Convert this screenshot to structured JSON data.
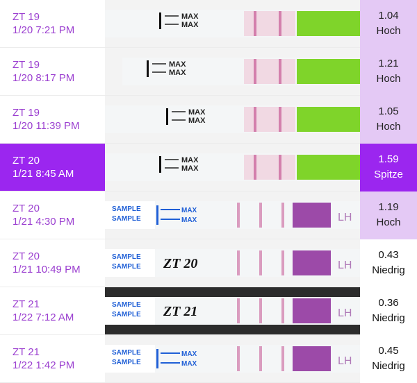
{
  "colors": {
    "accent": "#9b26ef",
    "label_text": "#9b3fd0",
    "hoch_bg": "#e4c9f5",
    "spitze_bg": "#9b26ef",
    "niedrig_bg": "#ffffff",
    "control_line": "#c8609a",
    "green_cap": "#7fd42a",
    "purple_pad": "#9c4aa8"
  },
  "tests": [
    {
      "day": "ZT 19",
      "datetime": "1/20 7:21 PM",
      "value": "1.04",
      "level": "Hoch",
      "style": "max",
      "selected": false
    },
    {
      "day": "ZT 19",
      "datetime": "1/20 8:17 PM",
      "value": "1.21",
      "level": "Hoch",
      "style": "max",
      "selected": false
    },
    {
      "day": "ZT 19",
      "datetime": "1/20 11:39 PM",
      "value": "1.05",
      "level": "Hoch",
      "style": "max",
      "selected": false
    },
    {
      "day": "ZT 20",
      "datetime": "1/21 8:45 AM",
      "value": "1.59",
      "level": "Spitze",
      "style": "max",
      "selected": true
    },
    {
      "day": "ZT 20",
      "datetime": "1/21 4:30 PM",
      "value": "1.19",
      "level": "Hoch",
      "style": "sample",
      "selected": false
    },
    {
      "day": "ZT 20",
      "datetime": "1/21 10:49 PM",
      "value": "0.43",
      "level": "Niedrig",
      "style": "sample",
      "selected": false
    },
    {
      "day": "ZT 21",
      "datetime": "1/22 7:12 AM",
      "value": "0.36",
      "level": "Niedrig",
      "style": "sample",
      "selected": false
    },
    {
      "day": "ZT 21",
      "datetime": "1/22 1:42 PM",
      "value": "0.45",
      "level": "Niedrig",
      "style": "sample",
      "selected": false
    }
  ],
  "strip_text": {
    "max": "MAX",
    "sample": "SAMPLE",
    "mark_1": "ZT 20",
    "mark_2": "ZT 21",
    "edge": "LH"
  }
}
